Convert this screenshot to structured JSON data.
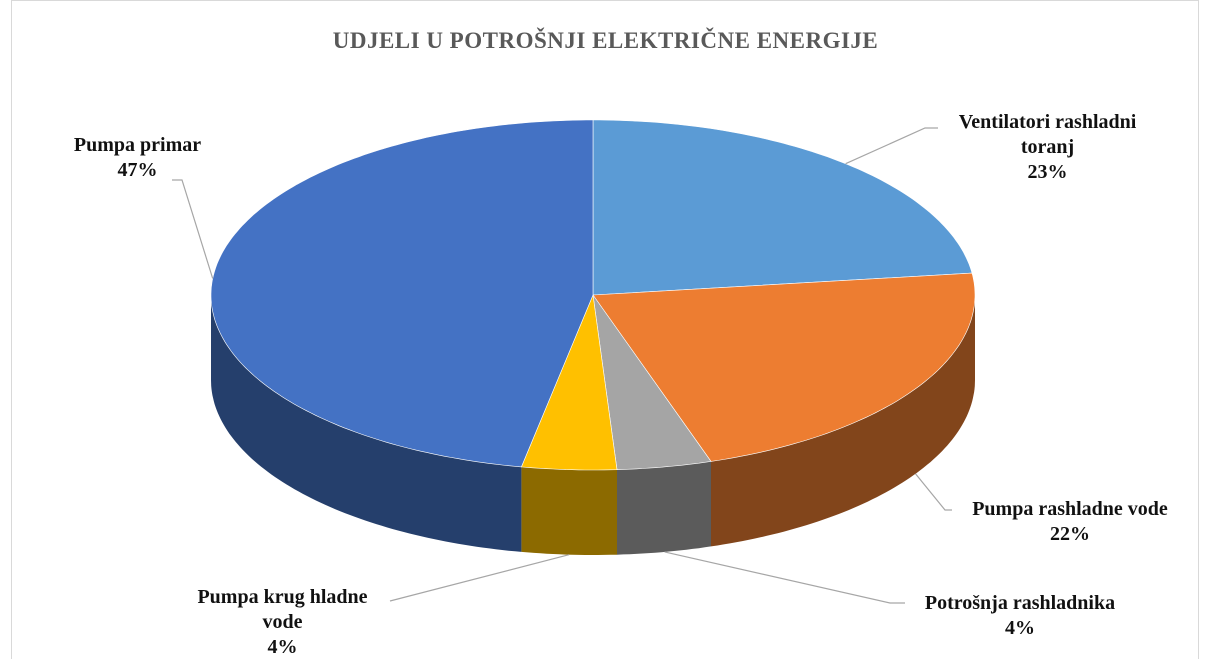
{
  "chart_data": {
    "type": "pie",
    "title": "UDJELI U POTROŠNJI ELEKTRIČNE ENERGIJE",
    "categories": [
      "Ventilatori rashladni toranj",
      "Pumpa rashladne vode",
      "Potrošnja rashladnika",
      "Pumpa krug hladne vode",
      "Pumpa primar"
    ],
    "values": [
      23,
      22,
      4,
      4,
      47
    ],
    "value_labels": [
      "23%",
      "22%",
      "4%",
      "4%",
      "47%"
    ],
    "colors": [
      "#5b9bd5",
      "#ed7d31",
      "#a5a5a5",
      "#ffc000",
      "#4472c4"
    ]
  }
}
